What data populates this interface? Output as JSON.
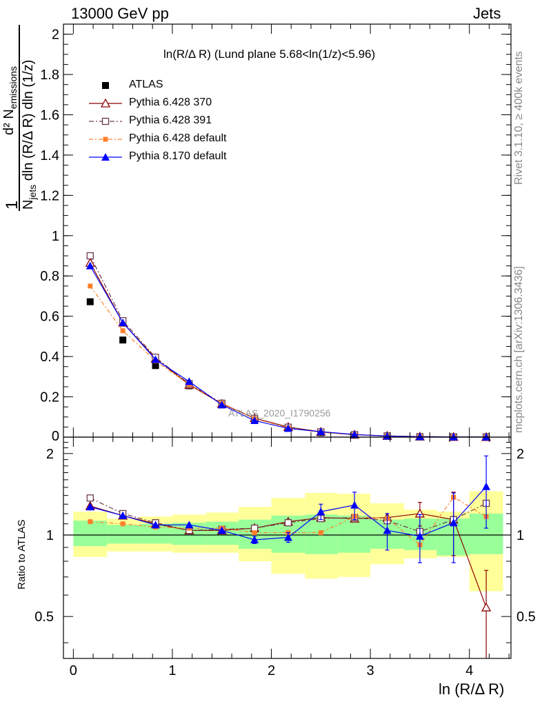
{
  "header": {
    "left": "13000 GeV pp",
    "right": "Jets"
  },
  "side_labels": {
    "rivet": "Rivet 3.1.10, ≥ 400k events",
    "mcplots": "mcplots.cern.ch [arXiv:1306.3436]"
  },
  "colors": {
    "atlas": "#000000",
    "pythia6_370": "#8b0000",
    "pythia6_391": "#6b3a4a",
    "pythia6_default": "#ff7f2a",
    "pythia8_default": "#0000ff",
    "band_outer": "#ffff99",
    "band_inner": "#99ff99"
  },
  "chart_data": [
    {
      "type": "line",
      "title": "ln(R/Δ R) (Lund plane 5.68<ln(1/z)<5.96)",
      "ylabel": "1/N_jets d² N_emissions / dln (R/Δ R) dln (1/z)",
      "ylabel_parts": {
        "one": "1",
        "numerator": "d² N",
        "numerator_sub": "emissions",
        "denominator_n": "N",
        "denominator_sub": "jets",
        "denominator_rest": "dln (R/Δ R) dln (1/z)"
      },
      "watermark": "ATLAS_2020_I1790256",
      "xlim": [
        -0.1,
        4.42
      ],
      "ylim": [
        0,
        2.05
      ],
      "yticks": [
        0.2,
        0.4,
        0.6,
        0.8,
        1,
        1.2,
        1.4,
        1.6,
        1.8,
        2
      ],
      "ytick_labels": [
        "0.2",
        "0.4",
        "0.6",
        "0.8",
        "1",
        "1.2",
        "1.4",
        "1.6",
        "1.8",
        "2"
      ],
      "ytick_zero_label": "0",
      "x": [
        0.17,
        0.5,
        0.83,
        1.17,
        1.5,
        1.83,
        2.17,
        2.5,
        2.84,
        3.17,
        3.5,
        3.84,
        4.17
      ],
      "series": [
        {
          "name": "ATLAS",
          "marker": "square-filled",
          "line": "none",
          "values": [
            0.672,
            0.482,
            0.355,
            0.255,
            0.16,
            0.09,
            0.044,
            0.022,
            0.01,
            0.005,
            0.002,
            0.001,
            0.0004
          ]
        },
        {
          "name": "Pythia 6.428 370",
          "marker": "triangle-open",
          "line": "solid",
          "values": [
            0.865,
            0.568,
            0.39,
            0.26,
            0.165,
            0.094,
            0.05,
            0.026,
            0.012,
            0.006,
            0.0025,
            0.0011,
            0.0003
          ]
        },
        {
          "name": "Pythia 6.428 391",
          "marker": "square-open",
          "line": "dashdot",
          "values": [
            0.9,
            0.578,
            0.396,
            0.265,
            0.168,
            0.093,
            0.049,
            0.026,
            0.012,
            0.006,
            0.002,
            0.0011,
            0.0005
          ]
        },
        {
          "name": "Pythia 6.428 default",
          "marker": "square-small",
          "line": "dashdot",
          "values": [
            0.75,
            0.528,
            0.378,
            0.262,
            0.168,
            0.092,
            0.046,
            0.023,
            0.011,
            0.0055,
            0.002,
            0.0011,
            0.0005
          ]
        },
        {
          "name": "Pythia 8.170 default",
          "marker": "triangle-filled",
          "line": "solid",
          "values": [
            0.85,
            0.568,
            0.385,
            0.276,
            0.16,
            0.082,
            0.043,
            0.027,
            0.013,
            0.005,
            0.002,
            0.001,
            0.0006
          ]
        }
      ]
    },
    {
      "type": "line",
      "title": "",
      "ylabel": "Ratio to ATLAS",
      "xlabel": "ln (R/Δ R)",
      "scale": "log",
      "xlim": [
        -0.1,
        4.42
      ],
      "ylim": [
        0.35,
        2.3
      ],
      "yticks": [
        0.5,
        1,
        2
      ],
      "ytick_labels": [
        "0.5",
        "1",
        "2"
      ],
      "xticks": [
        0,
        1,
        2,
        3,
        4
      ],
      "xtick_labels": [
        "0",
        "1",
        "2",
        "3",
        "4"
      ],
      "bin_edges": [
        0,
        0.34,
        0.67,
        1.0,
        1.34,
        1.67,
        2.0,
        2.34,
        2.67,
        3.0,
        3.34,
        3.67,
        4.0,
        4.34
      ],
      "band_outer": {
        "lo": [
          0.83,
          0.87,
          0.87,
          0.86,
          0.86,
          0.8,
          0.72,
          0.69,
          0.7,
          0.78,
          0.82,
          0.83,
          0.62
        ],
        "hi": [
          1.22,
          1.15,
          1.17,
          1.19,
          1.21,
          1.27,
          1.37,
          1.43,
          1.42,
          1.31,
          1.24,
          1.22,
          1.45
        ]
      },
      "band_inner": {
        "lo": [
          0.91,
          0.93,
          0.93,
          0.92,
          0.92,
          0.89,
          0.86,
          0.85,
          0.86,
          0.89,
          0.88,
          0.84,
          0.85
        ],
        "hi": [
          1.13,
          1.09,
          1.1,
          1.11,
          1.12,
          1.14,
          1.18,
          1.19,
          1.18,
          1.14,
          1.15,
          1.15,
          1.2
        ]
      },
      "x": [
        0.17,
        0.5,
        0.83,
        1.17,
        1.5,
        1.83,
        2.17,
        2.5,
        2.84,
        3.17,
        3.5,
        3.84,
        4.17
      ],
      "series": [
        {
          "name": "Pythia 6.428 370",
          "values": [
            1.28,
            1.18,
            1.1,
            1.04,
            1.04,
            1.06,
            1.12,
            1.16,
            1.15,
            1.16,
            1.2,
            1.14,
            0.54
          ],
          "err": [
            0,
            0,
            0,
            0,
            0,
            0,
            0,
            0,
            0,
            0,
            0.12,
            0.3,
            0.2
          ]
        },
        {
          "name": "Pythia 6.428 391",
          "values": [
            1.37,
            1.2,
            1.11,
            1.04,
            1.05,
            1.06,
            1.11,
            1.15,
            1.16,
            1.13,
            1.03,
            1.14,
            1.31
          ],
          "err": [
            0,
            0,
            0,
            0,
            0,
            0,
            0,
            0,
            0,
            0,
            0,
            0,
            0
          ]
        },
        {
          "name": "Pythia 6.428 default",
          "values": [
            1.12,
            1.1,
            1.07,
            1.06,
            1.06,
            1.02,
            1.02,
            1.02,
            1.17,
            1.15,
            0.92,
            1.38,
            1.17
          ],
          "err": [
            0,
            0,
            0,
            0,
            0,
            0,
            0,
            0,
            0,
            0,
            0,
            0,
            0
          ]
        },
        {
          "name": "Pythia 8.170 default",
          "values": [
            1.27,
            1.18,
            1.09,
            1.09,
            1.04,
            0.96,
            0.98,
            1.22,
            1.29,
            1.04,
            0.99,
            1.11,
            1.51
          ],
          "err": [
            0,
            0,
            0,
            0,
            0,
            0.03,
            0.04,
            0.08,
            0.15,
            0.16,
            0.2,
            0.32,
            0.45
          ]
        }
      ]
    }
  ]
}
